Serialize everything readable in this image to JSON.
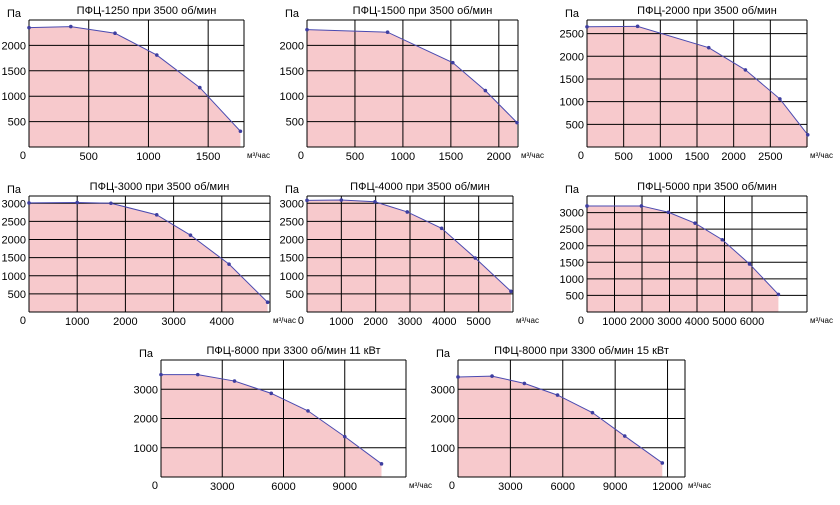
{
  "chart_data": [
    {
      "type": "area",
      "title": "ПФЦ-1250 при 3500 об/мин",
      "ylabel": "Па",
      "xlabel": "м³/час",
      "xlim": [
        0,
        1800
      ],
      "ylim": [
        0,
        2500
      ],
      "xticks": [
        0,
        500,
        1000,
        1500
      ],
      "yticks": [
        500,
        1000,
        1500,
        2000
      ],
      "x": [
        0,
        350,
        720,
        1070,
        1430,
        1770
      ],
      "y": [
        2350,
        2370,
        2240,
        1810,
        1170,
        310
      ]
    },
    {
      "type": "area",
      "title": "ПФЦ-1500 при 3500 об/мин",
      "ylabel": "Па",
      "xlabel": "м³/час",
      "xlim": [
        0,
        2200
      ],
      "ylim": [
        0,
        2500
      ],
      "xticks": [
        0,
        500,
        1000,
        1500,
        2000
      ],
      "yticks": [
        500,
        1000,
        1500,
        2000
      ],
      "x": [
        0,
        840,
        1520,
        1860,
        2190
      ],
      "y": [
        2310,
        2260,
        1660,
        1110,
        480
      ]
    },
    {
      "type": "area",
      "title": "ПФЦ-2000 при 3500 об/мин",
      "ylabel": "Па",
      "xlabel": "м³/час",
      "xlim": [
        0,
        3000
      ],
      "ylim": [
        0,
        2800
      ],
      "xticks": [
        0,
        500,
        1000,
        1500,
        2000,
        2500
      ],
      "yticks": [
        500,
        1000,
        1500,
        2000,
        2500
      ],
      "x": [
        0,
        690,
        1660,
        2160,
        2630,
        3010
      ],
      "y": [
        2650,
        2660,
        2190,
        1700,
        1060,
        270
      ]
    },
    {
      "type": "area",
      "title": "ПФЦ-3000 при 3500 об/мин",
      "ylabel": "Па",
      "xlabel": "м³/час",
      "xlim": [
        0,
        5000
      ],
      "ylim": [
        0,
        3200
      ],
      "xticks": [
        0,
        1000,
        2000,
        3000,
        4000
      ],
      "yticks": [
        500,
        1000,
        1500,
        2000,
        2500,
        3000
      ],
      "x": [
        0,
        1000,
        1700,
        2650,
        3350,
        4150,
        4950
      ],
      "y": [
        3010,
        3020,
        3000,
        2680,
        2120,
        1320,
        270
      ]
    },
    {
      "type": "area",
      "title": "ПФЦ-4000 при 3500 об/мин",
      "ylabel": "Па",
      "xlabel": "м³/час",
      "xlim": [
        0,
        6000
      ],
      "ylim": [
        0,
        3200
      ],
      "xticks": [
        0,
        1000,
        2000,
        3000,
        4000,
        5000
      ],
      "yticks": [
        500,
        1000,
        1500,
        2000,
        2500,
        3000
      ],
      "x": [
        0,
        1000,
        1980,
        2920,
        3920,
        4900,
        5940
      ],
      "y": [
        3080,
        3090,
        3040,
        2760,
        2310,
        1490,
        570
      ]
    },
    {
      "type": "area",
      "title": "ПФЦ-5000 при 3500 об/мин",
      "ylabel": "Па",
      "xlabel": "м³/час",
      "xlim": [
        0,
        8000
      ],
      "ylim": [
        0,
        3500
      ],
      "xticks": [
        0,
        1000,
        2000,
        3000,
        4000,
        5000,
        6000
      ],
      "yticks": [
        500,
        1000,
        1500,
        2000,
        2500,
        3000
      ],
      "x": [
        0,
        1980,
        2960,
        3930,
        4920,
        5910,
        6960
      ],
      "y": [
        3200,
        3200,
        3010,
        2680,
        2180,
        1450,
        530
      ]
    },
    {
      "type": "area",
      "title": "ПФЦ-8000 при 3300 об/мин 11 кВт",
      "ylabel": "Па",
      "xlabel": "м³/час",
      "xlim": [
        0,
        12000
      ],
      "ylim": [
        0,
        4000
      ],
      "xticks": [
        0,
        3000,
        6000,
        9000
      ],
      "yticks": [
        1000,
        2000,
        3000
      ],
      "x": [
        0,
        1800,
        3600,
        5400,
        7200,
        9000,
        10800
      ],
      "y": [
        3500,
        3500,
        3280,
        2860,
        2260,
        1380,
        450
      ]
    },
    {
      "type": "area",
      "title": "ПФЦ-8000 при 3300 об/мин 15 кВт",
      "ylabel": "Па",
      "xlabel": "м³/час",
      "xlim": [
        0,
        13000
      ],
      "ylim": [
        0,
        4000
      ],
      "xticks": [
        0,
        3000,
        6000,
        9000,
        12000
      ],
      "yticks": [
        1000,
        2000,
        3000
      ],
      "x": [
        0,
        1950,
        3800,
        5700,
        7700,
        9550,
        11700
      ],
      "y": [
        3420,
        3450,
        3200,
        2800,
        2200,
        1400,
        480
      ]
    }
  ],
  "style": {
    "fill": "#f7c9cc",
    "line": "#4a4ab0",
    "marker": "#3e3ea0",
    "grid": "#000000"
  }
}
